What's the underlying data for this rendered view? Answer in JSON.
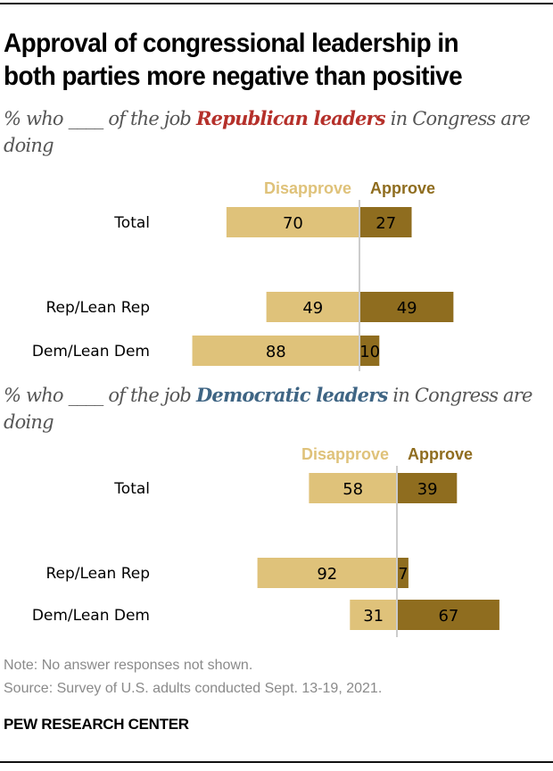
{
  "title": "Approval of congressional leadership in both parties more negative than positive",
  "colors": {
    "disapprove": "#dfc27a",
    "approve": "#8f6d1f",
    "rep_highlight": "#b5302a",
    "dem_highlight": "#3f6584",
    "center_line": "#cccccc"
  },
  "chart_data": [
    {
      "type": "bar",
      "orientation": "diverging-horizontal",
      "subtitle": {
        "before": "% who ____ of the job ",
        "highlight": "Republican leaders",
        "after": " in Congress are doing"
      },
      "legend": [
        "Disapprove",
        "Approve"
      ],
      "categories": [
        "Total",
        "Rep/Lean Rep",
        "Dem/Lean Dem"
      ],
      "series": [
        {
          "name": "Disapprove",
          "values": [
            70,
            49,
            88
          ]
        },
        {
          "name": "Approve",
          "values": [
            27,
            49,
            10
          ]
        }
      ]
    },
    {
      "type": "bar",
      "orientation": "diverging-horizontal",
      "subtitle": {
        "before": "% who ____ of the job ",
        "highlight": "Democratic leaders",
        "after": " in Congress are doing"
      },
      "legend": [
        "Disapprove",
        "Approve"
      ],
      "categories": [
        "Total",
        "Rep/Lean Rep",
        "Dem/Lean Dem"
      ],
      "series": [
        {
          "name": "Disapprove",
          "values": [
            58,
            92,
            31
          ]
        },
        {
          "name": "Approve",
          "values": [
            39,
            7,
            67
          ]
        }
      ]
    }
  ],
  "footer": {
    "note": "Note: No answer responses not shown.",
    "source": "Source: Survey of U.S. adults conducted Sept. 13-19, 2021.",
    "brand": "PEW RESEARCH CENTER"
  }
}
